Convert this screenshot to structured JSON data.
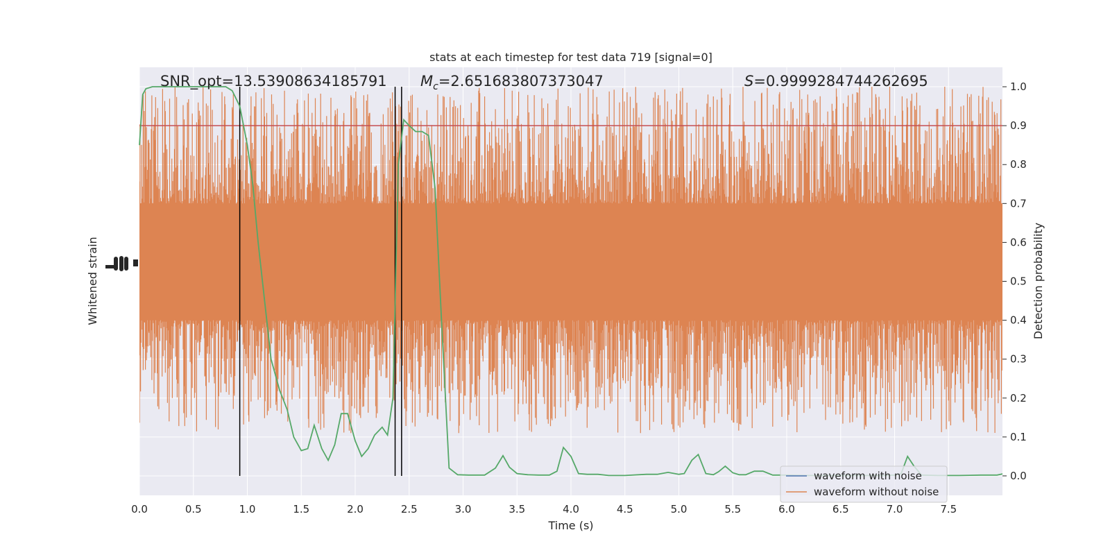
{
  "chart_data": {
    "type": "line",
    "title": "stats at each timestep for test data 719 [signal=0]",
    "xlabel": "Time (s)",
    "ylabel_left": "Whitened strain",
    "ylabel_right": "Detection probability",
    "xlim": [
      0,
      8
    ],
    "ylim_right": [
      -0.05,
      1.05
    ],
    "x_ticks": [
      "0.0",
      "0.5",
      "1.0",
      "1.5",
      "2.0",
      "2.5",
      "3.0",
      "3.5",
      "4.0",
      "4.5",
      "5.0",
      "5.5",
      "6.0",
      "6.5",
      "7.0",
      "7.5"
    ],
    "x_tick_values": [
      0,
      0.5,
      1,
      1.5,
      2,
      2.5,
      3,
      3.5,
      4,
      4.5,
      5,
      5.5,
      6,
      6.5,
      7,
      7.5
    ],
    "y_ticks_right": [
      "0.0",
      "0.1",
      "0.2",
      "0.3",
      "0.4",
      "0.5",
      "0.6",
      "0.7",
      "0.8",
      "0.9",
      "1.0"
    ],
    "y_tick_values_right": [
      0,
      0.1,
      0.2,
      0.3,
      0.4,
      0.5,
      0.6,
      0.7,
      0.8,
      0.9,
      1.0
    ],
    "grid": true,
    "legend_position": "bottom-right",
    "annotations": {
      "snr_label": "SNR_opt=13.53908634185791",
      "mc_symbol": "M",
      "mc_sub": "c",
      "mc_value": "=2.651683807373047",
      "s_symbol": "S",
      "s_value": "=0.9999284744262695"
    },
    "threshold": 0.9,
    "vlines_x": [
      0.93,
      2.37,
      2.43
    ],
    "series": [
      {
        "name": "waveform with noise",
        "color": "#4c72b0",
        "values": []
      },
      {
        "name": "waveform without noise",
        "color": "#dd8452",
        "band_low": 0.4,
        "band_high": 0.7,
        "peak_high": 1.0,
        "peak_low": 0.11
      },
      {
        "color": "#55a868",
        "x": [
          0.0,
          0.03,
          0.06,
          0.12,
          0.2,
          0.4,
          0.6,
          0.8,
          0.86,
          0.93,
          1.0,
          1.05,
          1.1,
          1.16,
          1.22,
          1.3,
          1.37,
          1.43,
          1.5,
          1.56,
          1.62,
          1.69,
          1.75,
          1.81,
          1.87,
          1.93,
          2.0,
          2.06,
          2.12,
          2.18,
          2.25,
          2.3,
          2.35,
          2.4,
          2.45,
          2.5,
          2.56,
          2.62,
          2.68,
          2.74,
          2.8,
          2.87,
          2.95,
          3.05,
          3.2,
          3.3,
          3.37,
          3.43,
          3.5,
          3.6,
          3.7,
          3.8,
          3.87,
          3.93,
          4.0,
          4.07,
          4.15,
          4.25,
          4.35,
          4.5,
          4.7,
          4.8,
          4.9,
          5.0,
          5.05,
          5.12,
          5.18,
          5.25,
          5.32,
          5.37,
          5.43,
          5.5,
          5.56,
          5.62,
          5.7,
          5.78,
          5.87,
          6.0,
          6.2,
          6.5,
          6.7,
          6.9,
          7.0,
          7.06,
          7.12,
          7.18,
          7.25,
          7.4,
          7.6,
          7.8,
          7.95,
          8.0
        ],
        "values": [
          0.85,
          0.98,
          0.995,
          1.0,
          1.0,
          1.0,
          1.0,
          1.0,
          0.99,
          0.95,
          0.85,
          0.75,
          0.6,
          0.45,
          0.3,
          0.22,
          0.17,
          0.1,
          0.065,
          0.07,
          0.13,
          0.07,
          0.04,
          0.08,
          0.16,
          0.16,
          0.09,
          0.05,
          0.07,
          0.105,
          0.125,
          0.105,
          0.2,
          0.8,
          0.915,
          0.9,
          0.885,
          0.885,
          0.875,
          0.74,
          0.4,
          0.02,
          0.003,
          0.002,
          0.002,
          0.02,
          0.052,
          0.022,
          0.006,
          0.003,
          0.002,
          0.002,
          0.012,
          0.073,
          0.05,
          0.006,
          0.004,
          0.004,
          0.001,
          0.001,
          0.004,
          0.004,
          0.009,
          0.004,
          0.006,
          0.04,
          0.055,
          0.006,
          0.003,
          0.011,
          0.025,
          0.008,
          0.003,
          0.003,
          0.012,
          0.012,
          0.002,
          0.002,
          0.001,
          0.001,
          0.001,
          0.001,
          0.002,
          0.005,
          0.05,
          0.025,
          0.002,
          0.001,
          0.001,
          0.002,
          0.002,
          0.005
        ]
      }
    ]
  }
}
